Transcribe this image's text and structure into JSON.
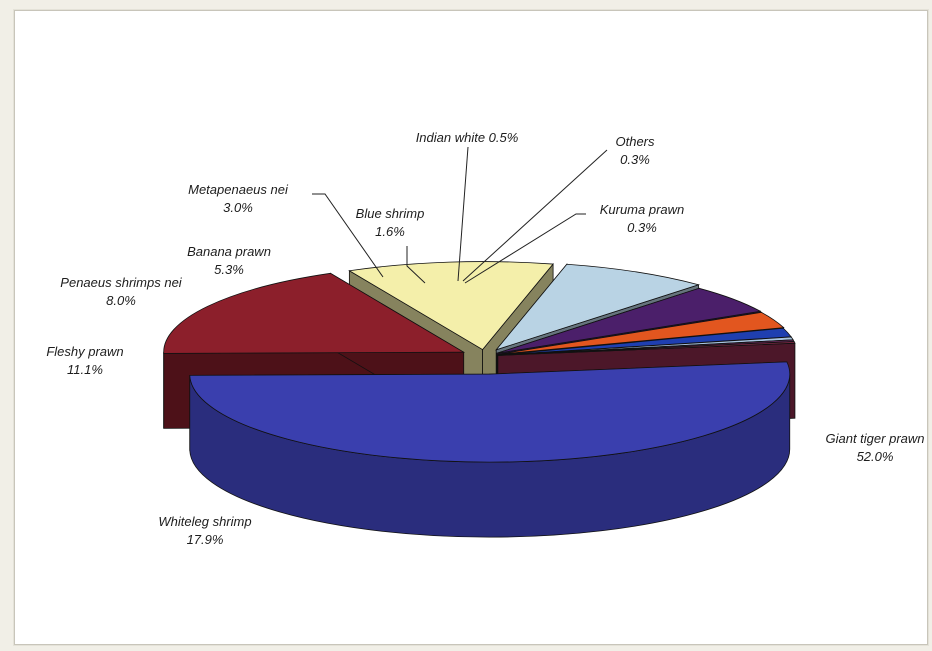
{
  "chart_data": {
    "type": "pie",
    "style": "3d-exploded",
    "title": "",
    "unit": "%",
    "slices": [
      {
        "name": "Giant tiger prawn",
        "value": 52.0,
        "label": "52.0%",
        "color": "#3a3fae"
      },
      {
        "name": "Whiteleg shrimp",
        "value": 17.9,
        "label": "17.9%",
        "color": "#8c1f2b"
      },
      {
        "name": "Fleshy prawn",
        "value": 11.1,
        "label": "11.1%",
        "color": "#f4efaa"
      },
      {
        "name": "Penaeus shrimps nei",
        "value": 8.0,
        "label": "8.0%",
        "color": "#b9d3e4"
      },
      {
        "name": "Banana prawn",
        "value": 5.3,
        "label": "5.3%",
        "color": "#4b1f6a"
      },
      {
        "name": "Metapenaeus nei",
        "value": 3.0,
        "label": "3.0%",
        "color": "#e2561f"
      },
      {
        "name": "Blue shrimp",
        "value": 1.6,
        "label": "1.6%",
        "color": "#1f3fb0"
      },
      {
        "name": "Indian white",
        "value": 0.5,
        "label": "0.5%",
        "color": "#a9c4e0"
      },
      {
        "name": "Others",
        "value": 0.3,
        "label": "0.3%",
        "color": "#6a2a5e"
      },
      {
        "name": "Kuruma prawn",
        "value": 0.3,
        "label": "0.3%",
        "color": "#8b2a4a"
      }
    ]
  }
}
